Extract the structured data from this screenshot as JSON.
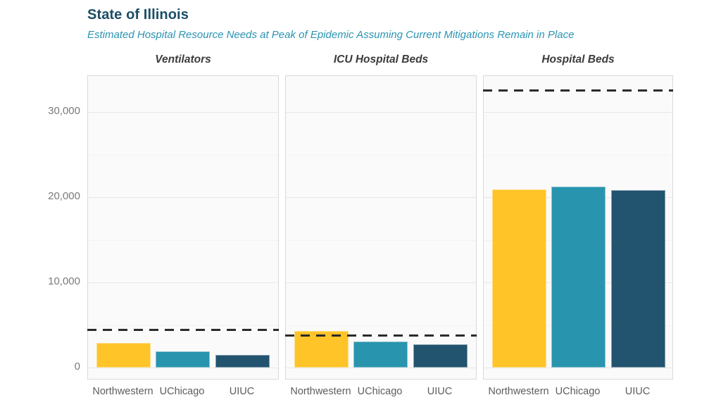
{
  "header": {
    "title": "State of Illinois",
    "subtitle": "Estimated Hospital Resource Needs at Peak of Epidemic Assuming Current Mitigations Remain in Place"
  },
  "colors": {
    "title_text": "#1c4e66",
    "subtitle_text": "#2a93b2",
    "panel_title_text": "#3b3b3b",
    "axis_tick_text": "#7a7a7a",
    "x_label_text": "#5d5d5d",
    "panel_border": "#d9d9d9",
    "panel_background": "#fafafa",
    "capacity_dash": "#2b2b2b",
    "northwestern_bar": "#ffc428",
    "uchicago_bar": "#2994ae",
    "uiuc_bar": "#22536f"
  },
  "chart_data": {
    "type": "bar",
    "layout": "three faceted panels, shared y axis, dashed horizontal capacity line per panel",
    "categories": [
      "Northwestern",
      "UChicago",
      "UIUC"
    ],
    "series_colors": [
      "#ffc428",
      "#2994ae",
      "#22536f"
    ],
    "facets": [
      {
        "title": "Ventilators",
        "values": [
          2870,
          1880,
          1490
        ],
        "capacity_line": 4450
      },
      {
        "title": "ICU Hospital Beds",
        "values": [
          4300,
          3080,
          2750
        ],
        "capacity_line": 3750
      },
      {
        "title": "Hospital Beds",
        "values": [
          20900,
          21250,
          20850
        ],
        "capacity_line": 32550
      }
    ],
    "yaxis": {
      "ticks": [
        0,
        10000,
        20000,
        30000
      ],
      "tick_labels": [
        "0",
        "10,000",
        "20,000",
        "30,000"
      ],
      "minor_gridlines": [
        5000,
        15000,
        25000
      ],
      "ylim": [
        0,
        34200
      ],
      "grid": true
    },
    "legend_position": "none"
  }
}
